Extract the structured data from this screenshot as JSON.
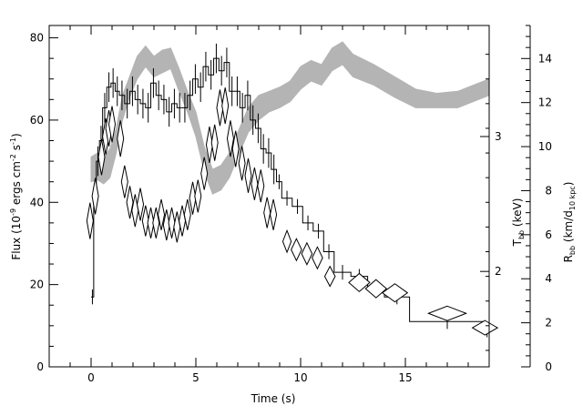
{
  "chart_data": {
    "type": "line",
    "xlabel": "Time (s)",
    "ylabel_left": [
      "Flux (10",
      "-9",
      " ergs cm",
      "-2",
      " s",
      "-1",
      ")"
    ],
    "ylabel_right_outer": [
      "R",
      "bb",
      " (km/d",
      "10 kpc",
      ")"
    ],
    "ylabel_right_inner": [
      "T",
      "bb",
      " (keV)"
    ],
    "xlim": [
      -2,
      19
    ],
    "ylim_flux": [
      0,
      83
    ],
    "ylim_radius": [
      0,
      15.5
    ],
    "x_ticks": [
      {
        "v": 0,
        "label": "0"
      },
      {
        "v": 5,
        "label": "5"
      },
      {
        "v": 10,
        "label": "10"
      },
      {
        "v": 15,
        "label": "15"
      }
    ],
    "y_ticks_flux": [
      {
        "v": 0,
        "label": "0"
      },
      {
        "v": 20,
        "label": "20"
      },
      {
        "v": 40,
        "label": "40"
      },
      {
        "v": 60,
        "label": "60"
      },
      {
        "v": 80,
        "label": "80"
      }
    ],
    "y_ticks_radius": [
      {
        "v": 0,
        "label": "0"
      },
      {
        "v": 2,
        "label": "2"
      },
      {
        "v": 4,
        "label": "4"
      },
      {
        "v": 6,
        "label": "6"
      },
      {
        "v": 8,
        "label": "8"
      },
      {
        "v": 10,
        "label": "10"
      },
      {
        "v": 12,
        "label": "12"
      },
      {
        "v": 14,
        "label": "14"
      }
    ],
    "y_ticks_temp": [
      {
        "label": "2",
        "flux": 23.2
      },
      {
        "label": "3",
        "flux": 56.0
      }
    ],
    "series": [
      {
        "style": "histogram",
        "color": "#000000",
        "bins": [
          [
            0.0,
            0.125,
            17
          ],
          [
            0.125,
            0.25,
            42
          ],
          [
            0.25,
            0.4,
            50
          ],
          [
            0.4,
            0.55,
            55
          ],
          [
            0.55,
            0.75,
            63
          ],
          [
            0.75,
            0.95,
            68
          ],
          [
            0.95,
            1.15,
            69
          ],
          [
            1.15,
            1.35,
            67
          ],
          [
            1.35,
            1.6,
            66
          ],
          [
            1.6,
            1.85,
            64
          ],
          [
            1.85,
            2.1,
            67
          ],
          [
            2.1,
            2.35,
            65
          ],
          [
            2.35,
            2.6,
            64
          ],
          [
            2.6,
            2.85,
            63
          ],
          [
            2.85,
            3.1,
            69
          ],
          [
            3.1,
            3.35,
            66
          ],
          [
            3.35,
            3.6,
            65
          ],
          [
            3.6,
            3.85,
            62
          ],
          [
            3.85,
            4.1,
            64
          ],
          [
            4.1,
            4.35,
            63
          ],
          [
            4.35,
            4.6,
            63
          ],
          [
            4.6,
            4.85,
            66
          ],
          [
            4.85,
            5.1,
            70
          ],
          [
            5.1,
            5.35,
            68
          ],
          [
            5.35,
            5.6,
            73
          ],
          [
            5.6,
            5.85,
            71
          ],
          [
            5.85,
            6.1,
            75
          ],
          [
            6.1,
            6.35,
            72
          ],
          [
            6.35,
            6.6,
            74
          ],
          [
            6.6,
            6.85,
            67
          ],
          [
            6.85,
            7.1,
            67
          ],
          [
            7.1,
            7.35,
            63
          ],
          [
            7.35,
            7.6,
            66
          ],
          [
            7.6,
            7.85,
            60
          ],
          [
            7.85,
            8.1,
            58
          ],
          [
            8.1,
            8.35,
            53
          ],
          [
            8.35,
            8.6,
            52
          ],
          [
            8.6,
            8.85,
            48
          ],
          [
            8.85,
            9.1,
            45
          ],
          [
            9.1,
            9.6,
            41
          ],
          [
            9.6,
            10.1,
            39
          ],
          [
            10.1,
            10.6,
            35
          ],
          [
            10.6,
            11.1,
            33
          ],
          [
            11.1,
            11.6,
            28
          ],
          [
            11.6,
            12.4,
            23
          ],
          [
            12.4,
            13.2,
            22
          ],
          [
            13.2,
            14.0,
            19
          ],
          [
            14.0,
            15.2,
            17
          ],
          [
            15.2,
            18.8,
            11
          ],
          [
            18.8,
            19.0,
            9
          ]
        ],
        "error": 3
      },
      {
        "style": "band",
        "color": "#b4b4b4",
        "points": [
          [
            0.0,
            45.0,
            51.0
          ],
          [
            0.3,
            45.5,
            52.0
          ],
          [
            0.6,
            44.5,
            51.0
          ],
          [
            0.9,
            46.0,
            53.0
          ],
          [
            1.2,
            52.0,
            58.0
          ],
          [
            1.5,
            60.0,
            66.0
          ],
          [
            1.8,
            65.0,
            70.0
          ],
          [
            2.2,
            70.0,
            75.5
          ],
          [
            2.6,
            73.0,
            78.0
          ],
          [
            3.0,
            70.5,
            75.5
          ],
          [
            3.4,
            71.5,
            77.0
          ],
          [
            3.8,
            72.5,
            77.5
          ],
          [
            4.2,
            67.0,
            72.5
          ],
          [
            4.6,
            62.0,
            67.0
          ],
          [
            5.0,
            56.0,
            62.0
          ],
          [
            5.4,
            47.5,
            53.5
          ],
          [
            5.8,
            42.0,
            48.0
          ],
          [
            6.2,
            43.0,
            49.0
          ],
          [
            6.6,
            46.0,
            52.0
          ],
          [
            7.0,
            51.0,
            57.0
          ],
          [
            7.5,
            57.0,
            63.0
          ],
          [
            8.0,
            60.0,
            66.0
          ],
          [
            8.5,
            62.0,
            67.0
          ],
          [
            9.0,
            63.0,
            68.0
          ],
          [
            9.5,
            64.5,
            69.5
          ],
          [
            10.0,
            67.5,
            73.0
          ],
          [
            10.5,
            69.5,
            74.5
          ],
          [
            11.0,
            68.5,
            73.5
          ],
          [
            11.5,
            72.0,
            77.5
          ],
          [
            12.0,
            73.5,
            79.0
          ],
          [
            12.5,
            70.5,
            76.0
          ],
          [
            13.5,
            68.5,
            73.5
          ],
          [
            14.5,
            65.5,
            70.5
          ],
          [
            15.5,
            63.0,
            67.5
          ],
          [
            16.5,
            63.0,
            66.5
          ],
          [
            17.5,
            63.0,
            67.0
          ],
          [
            18.5,
            65.0,
            69.0
          ],
          [
            19.0,
            66.0,
            70.0
          ]
        ]
      },
      {
        "style": "diamonds",
        "color": "#000000",
        "points": [
          [
            -0.05,
            35.5,
            0.12,
            2.0
          ],
          [
            0.2,
            41.5,
            0.13,
            2.0
          ],
          [
            0.5,
            51.0,
            0.13,
            2.0
          ],
          [
            0.7,
            56.0,
            0.13,
            2.0
          ],
          [
            0.85,
            58.0,
            0.13,
            2.0
          ],
          [
            1.0,
            59.0,
            0.13,
            2.0
          ],
          [
            1.4,
            55.5,
            0.13,
            2.0
          ],
          [
            1.6,
            45.0,
            0.13,
            1.8
          ],
          [
            1.85,
            40.0,
            0.13,
            1.8
          ],
          [
            2.1,
            38.0,
            0.13,
            1.8
          ],
          [
            2.35,
            39.5,
            0.13,
            1.8
          ],
          [
            2.6,
            35.5,
            0.13,
            1.7
          ],
          [
            2.85,
            35.0,
            0.13,
            1.7
          ],
          [
            3.1,
            35.0,
            0.13,
            1.7
          ],
          [
            3.35,
            37.0,
            0.13,
            1.7
          ],
          [
            3.6,
            34.5,
            0.13,
            1.7
          ],
          [
            3.85,
            35.0,
            0.13,
            1.7
          ],
          [
            4.1,
            34.0,
            0.13,
            1.7
          ],
          [
            4.35,
            35.5,
            0.13,
            1.7
          ],
          [
            4.6,
            37.0,
            0.13,
            1.7
          ],
          [
            4.85,
            41.0,
            0.13,
            1.8
          ],
          [
            5.1,
            41.5,
            0.13,
            1.8
          ],
          [
            5.4,
            47.0,
            0.13,
            1.8
          ],
          [
            5.65,
            54.0,
            0.13,
            2.0
          ],
          [
            5.9,
            54.5,
            0.13,
            2.0
          ],
          [
            6.15,
            63.0,
            0.13,
            2.0
          ],
          [
            6.4,
            63.5,
            0.13,
            2.0
          ],
          [
            6.65,
            55.5,
            0.13,
            2.0
          ],
          [
            6.9,
            53.0,
            0.13,
            2.0
          ],
          [
            7.2,
            49.5,
            0.13,
            1.9
          ],
          [
            7.5,
            46.5,
            0.13,
            1.9
          ],
          [
            7.8,
            44.5,
            0.13,
            1.8
          ],
          [
            8.1,
            44.0,
            0.13,
            1.8
          ],
          [
            8.4,
            37.5,
            0.13,
            1.7
          ],
          [
            8.7,
            37.0,
            0.13,
            1.7
          ],
          [
            9.35,
            30.5,
            0.2,
            1.2
          ],
          [
            9.8,
            28.5,
            0.25,
            1.2
          ],
          [
            10.3,
            27.5,
            0.25,
            1.2
          ],
          [
            10.8,
            26.5,
            0.25,
            1.2
          ],
          [
            11.4,
            22.0,
            0.25,
            1.1
          ],
          [
            12.8,
            20.5,
            0.5,
            1.0
          ],
          [
            13.6,
            19.0,
            0.5,
            1.0
          ],
          [
            14.5,
            18.0,
            0.6,
            1.0
          ],
          [
            17.0,
            13.0,
            0.9,
            0.8
          ],
          [
            18.8,
            9.5,
            0.6,
            0.8
          ]
        ]
      }
    ]
  }
}
